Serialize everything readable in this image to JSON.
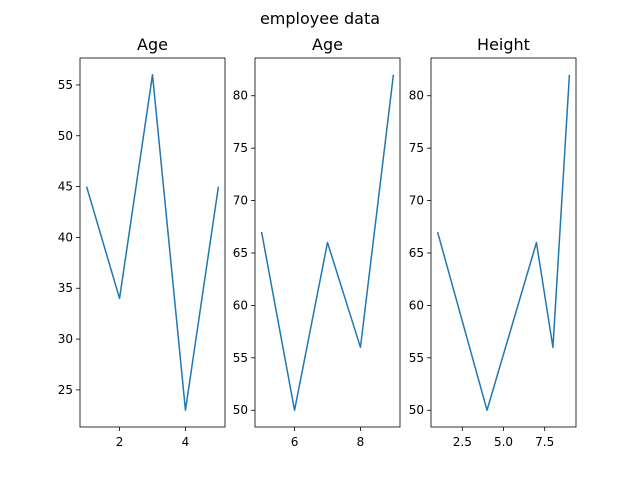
{
  "figure": {
    "suptitle": "employee data",
    "line_color": "#1f77b4"
  },
  "chart_data": [
    {
      "type": "line",
      "title": "Age",
      "x": [
        1,
        2,
        3,
        4,
        5
      ],
      "series": [
        {
          "values": [
            45,
            34,
            56,
            23,
            45
          ]
        }
      ],
      "xlim": [
        0.8,
        5.2
      ],
      "ylim": [
        21.35,
        57.65
      ],
      "xticks": [
        2,
        4
      ],
      "xtick_labels": [
        "2",
        "4"
      ],
      "yticks": [
        25,
        30,
        35,
        40,
        45,
        50,
        55
      ],
      "ytick_labels": [
        "25",
        "30",
        "35",
        "40",
        "45",
        "50",
        "55"
      ],
      "grid": false
    },
    {
      "type": "line",
      "title": "Age",
      "x": [
        5,
        6,
        7,
        8,
        9
      ],
      "series": [
        {
          "values": [
            67,
            50,
            66,
            56,
            82
          ]
        }
      ],
      "xlim": [
        4.8,
        9.2
      ],
      "ylim": [
        48.4,
        83.6
      ],
      "xticks": [
        6,
        8
      ],
      "xtick_labels": [
        "6",
        "8"
      ],
      "yticks": [
        50,
        55,
        60,
        65,
        70,
        75,
        80
      ],
      "ytick_labels": [
        "50",
        "55",
        "60",
        "65",
        "70",
        "75",
        "80"
      ],
      "grid": false
    },
    {
      "type": "line",
      "title": "Height",
      "x": [
        1,
        4,
        7,
        8,
        9
      ],
      "series": [
        {
          "values": [
            67,
            50,
            66,
            56,
            82
          ]
        }
      ],
      "xlim": [
        0.6,
        9.4
      ],
      "ylim": [
        48.4,
        83.6
      ],
      "xticks": [
        2.5,
        5.0,
        7.5
      ],
      "xtick_labels": [
        "2.5",
        "5.0",
        "7.5"
      ],
      "yticks": [
        50,
        55,
        60,
        65,
        70,
        75,
        80
      ],
      "ytick_labels": [
        "50",
        "55",
        "60",
        "65",
        "70",
        "75",
        "80"
      ],
      "grid": false
    }
  ]
}
